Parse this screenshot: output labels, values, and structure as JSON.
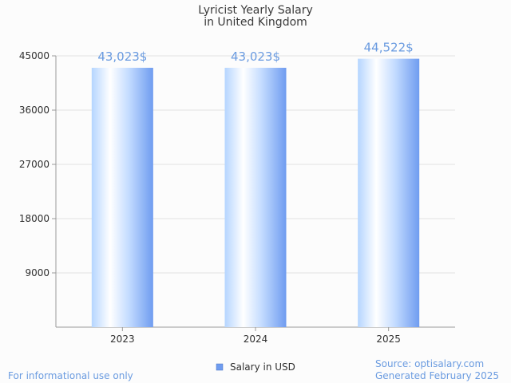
{
  "chart_data": {
    "type": "bar",
    "title": "Lyricist Yearly Salary",
    "subtitle": "in United Kingdom",
    "categories": [
      "2023",
      "2024",
      "2025"
    ],
    "series": [
      {
        "name": "Salary in USD",
        "values": [
          43023,
          43023,
          44522
        ],
        "labels": [
          "43,023$",
          "43,023$",
          "44,522$"
        ]
      }
    ],
    "ylim": [
      0,
      45000
    ],
    "yticks": [
      "45000",
      "36000",
      "27000",
      "18000",
      "9000"
    ],
    "ytick_values": [
      45000,
      36000,
      27000,
      18000,
      9000
    ],
    "grid": true,
    "legend_position": "bottom-center",
    "colors": {
      "bar_light": "#ffffff",
      "bar_mid": "#bfdcff",
      "bar_dark": "#6f9cf0",
      "label": "#6a9be0",
      "legend_swatch": "#6f9cf0"
    }
  },
  "footer": {
    "left": "For informational use only",
    "source": "Source: optisalary.com",
    "generated": "Generated February 2025"
  }
}
